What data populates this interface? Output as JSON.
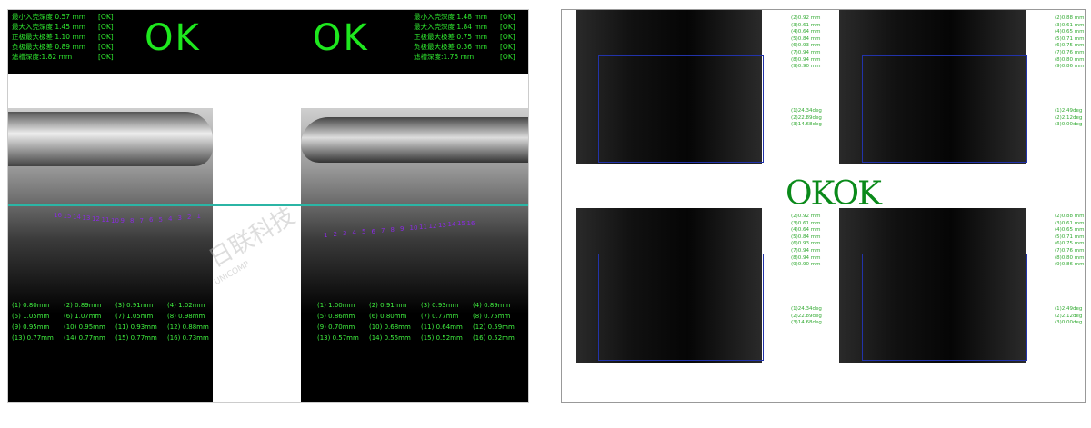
{
  "inspection_left": {
    "header_a": {
      "lines": [
        {
          "text": "最小入壳深度 0.57 mm",
          "status": "[OK]"
        },
        {
          "text": "最大入壳深度 1.45 mm",
          "status": "[OK]"
        },
        {
          "text": "正极最大极差 1.10 mm",
          "status": "[OK]"
        },
        {
          "text": "负极最大极差 0.89 mm",
          "status": "[OK]"
        },
        {
          "text": "滤槽深度:1.82 mm",
          "status": "[OK]"
        }
      ],
      "verdict": "OK"
    },
    "header_b": {
      "lines": [
        {
          "text": "最小入壳深度 1.48 mm",
          "status": "[OK]"
        },
        {
          "text": "最大入壳深度 1.84 mm",
          "status": "[OK]"
        },
        {
          "text": "正极最大极差 0.75 mm",
          "status": "[OK]"
        },
        {
          "text": "负极最大极差 0.36 mm",
          "status": "[OK]"
        },
        {
          "text": "滤槽深度:1.75 mm",
          "status": "[OK]"
        }
      ],
      "verdict": "OK"
    },
    "marks_a": [
      "16",
      "15",
      "14",
      "13",
      "12",
      "11",
      "10",
      "9",
      "8",
      "7",
      "6",
      "5",
      "4",
      "3",
      "2",
      "1"
    ],
    "marks_b": [
      "1",
      "2",
      "3",
      "4",
      "5",
      "6",
      "7",
      "8",
      "9",
      "10",
      "11",
      "12",
      "13",
      "14",
      "15",
      "16"
    ],
    "measurements_a": [
      "(1) 0.80mm",
      "(2) 0.89mm",
      "(3) 0.91mm",
      "(4) 1.02mm",
      "(5) 1.05mm",
      "(6) 1.07mm",
      "(7) 1.05mm",
      "(8) 0.98mm",
      "(9) 0.95mm",
      "(10) 0.95mm",
      "(11) 0.93mm",
      "(12) 0.88mm",
      "(13) 0.77mm",
      "(14) 0.77mm",
      "(15) 0.77mm",
      "(16) 0.73mm"
    ],
    "measurements_b": [
      "(1) 1.00mm",
      "(2) 0.91mm",
      "(3) 0.93mm",
      "(4) 0.89mm",
      "(5) 0.86mm",
      "(6) 0.80mm",
      "(7) 0.77mm",
      "(8) 0.75mm",
      "(9) 0.70mm",
      "(10) 0.68mm",
      "(11) 0.64mm",
      "(12) 0.59mm",
      "(13) 0.57mm",
      "(14) 0.55mm",
      "(15) 0.52mm",
      "(16) 0.52mm"
    ]
  },
  "inspection_right": {
    "verdicts": [
      "OK",
      "OK"
    ],
    "quadrants": [
      {
        "depths": [
          "(2)0.92 mm",
          "(3)0.61 mm",
          "(4)0.64 mm",
          "(5)0.84 mm",
          "(6)0.93 mm",
          "(7)0.94 mm",
          "(8)0.94 mm",
          "(9)0.90 mm"
        ],
        "angles": [
          "(1)24.34deg",
          "(2)22.89deg",
          "(3)14.68deg"
        ]
      },
      {
        "depths": [
          "(2)0.88 mm",
          "(3)0.61 mm",
          "(4)0.65 mm",
          "(5)0.71 mm",
          "(6)0.75 mm",
          "(7)0.76 mm",
          "(8)0.80 mm",
          "(9)0.86 mm"
        ],
        "angles": [
          "(1)2.49deg",
          "(2)2.12deg",
          "(3)0.00deg"
        ]
      },
      {
        "depths": [
          "(2)0.92 mm",
          "(3)0.61 mm",
          "(4)0.64 mm",
          "(5)0.84 mm",
          "(6)0.93 mm",
          "(7)0.94 mm",
          "(8)0.94 mm",
          "(9)0.90 mm"
        ],
        "angles": [
          "(1)24.34deg",
          "(2)22.89deg",
          "(3)14.68deg"
        ]
      },
      {
        "depths": [
          "(2)0.88 mm",
          "(3)0.61 mm",
          "(4)0.65 mm",
          "(5)0.71 mm",
          "(6)0.75 mm",
          "(7)0.76 mm",
          "(8)0.80 mm",
          "(9)0.86 mm"
        ],
        "angles": [
          "(1)2.49deg",
          "(2)2.12deg",
          "(3)0.00deg"
        ]
      }
    ]
  },
  "watermark": {
    "brand": "日联科技",
    "sub": "UNICOMP"
  }
}
